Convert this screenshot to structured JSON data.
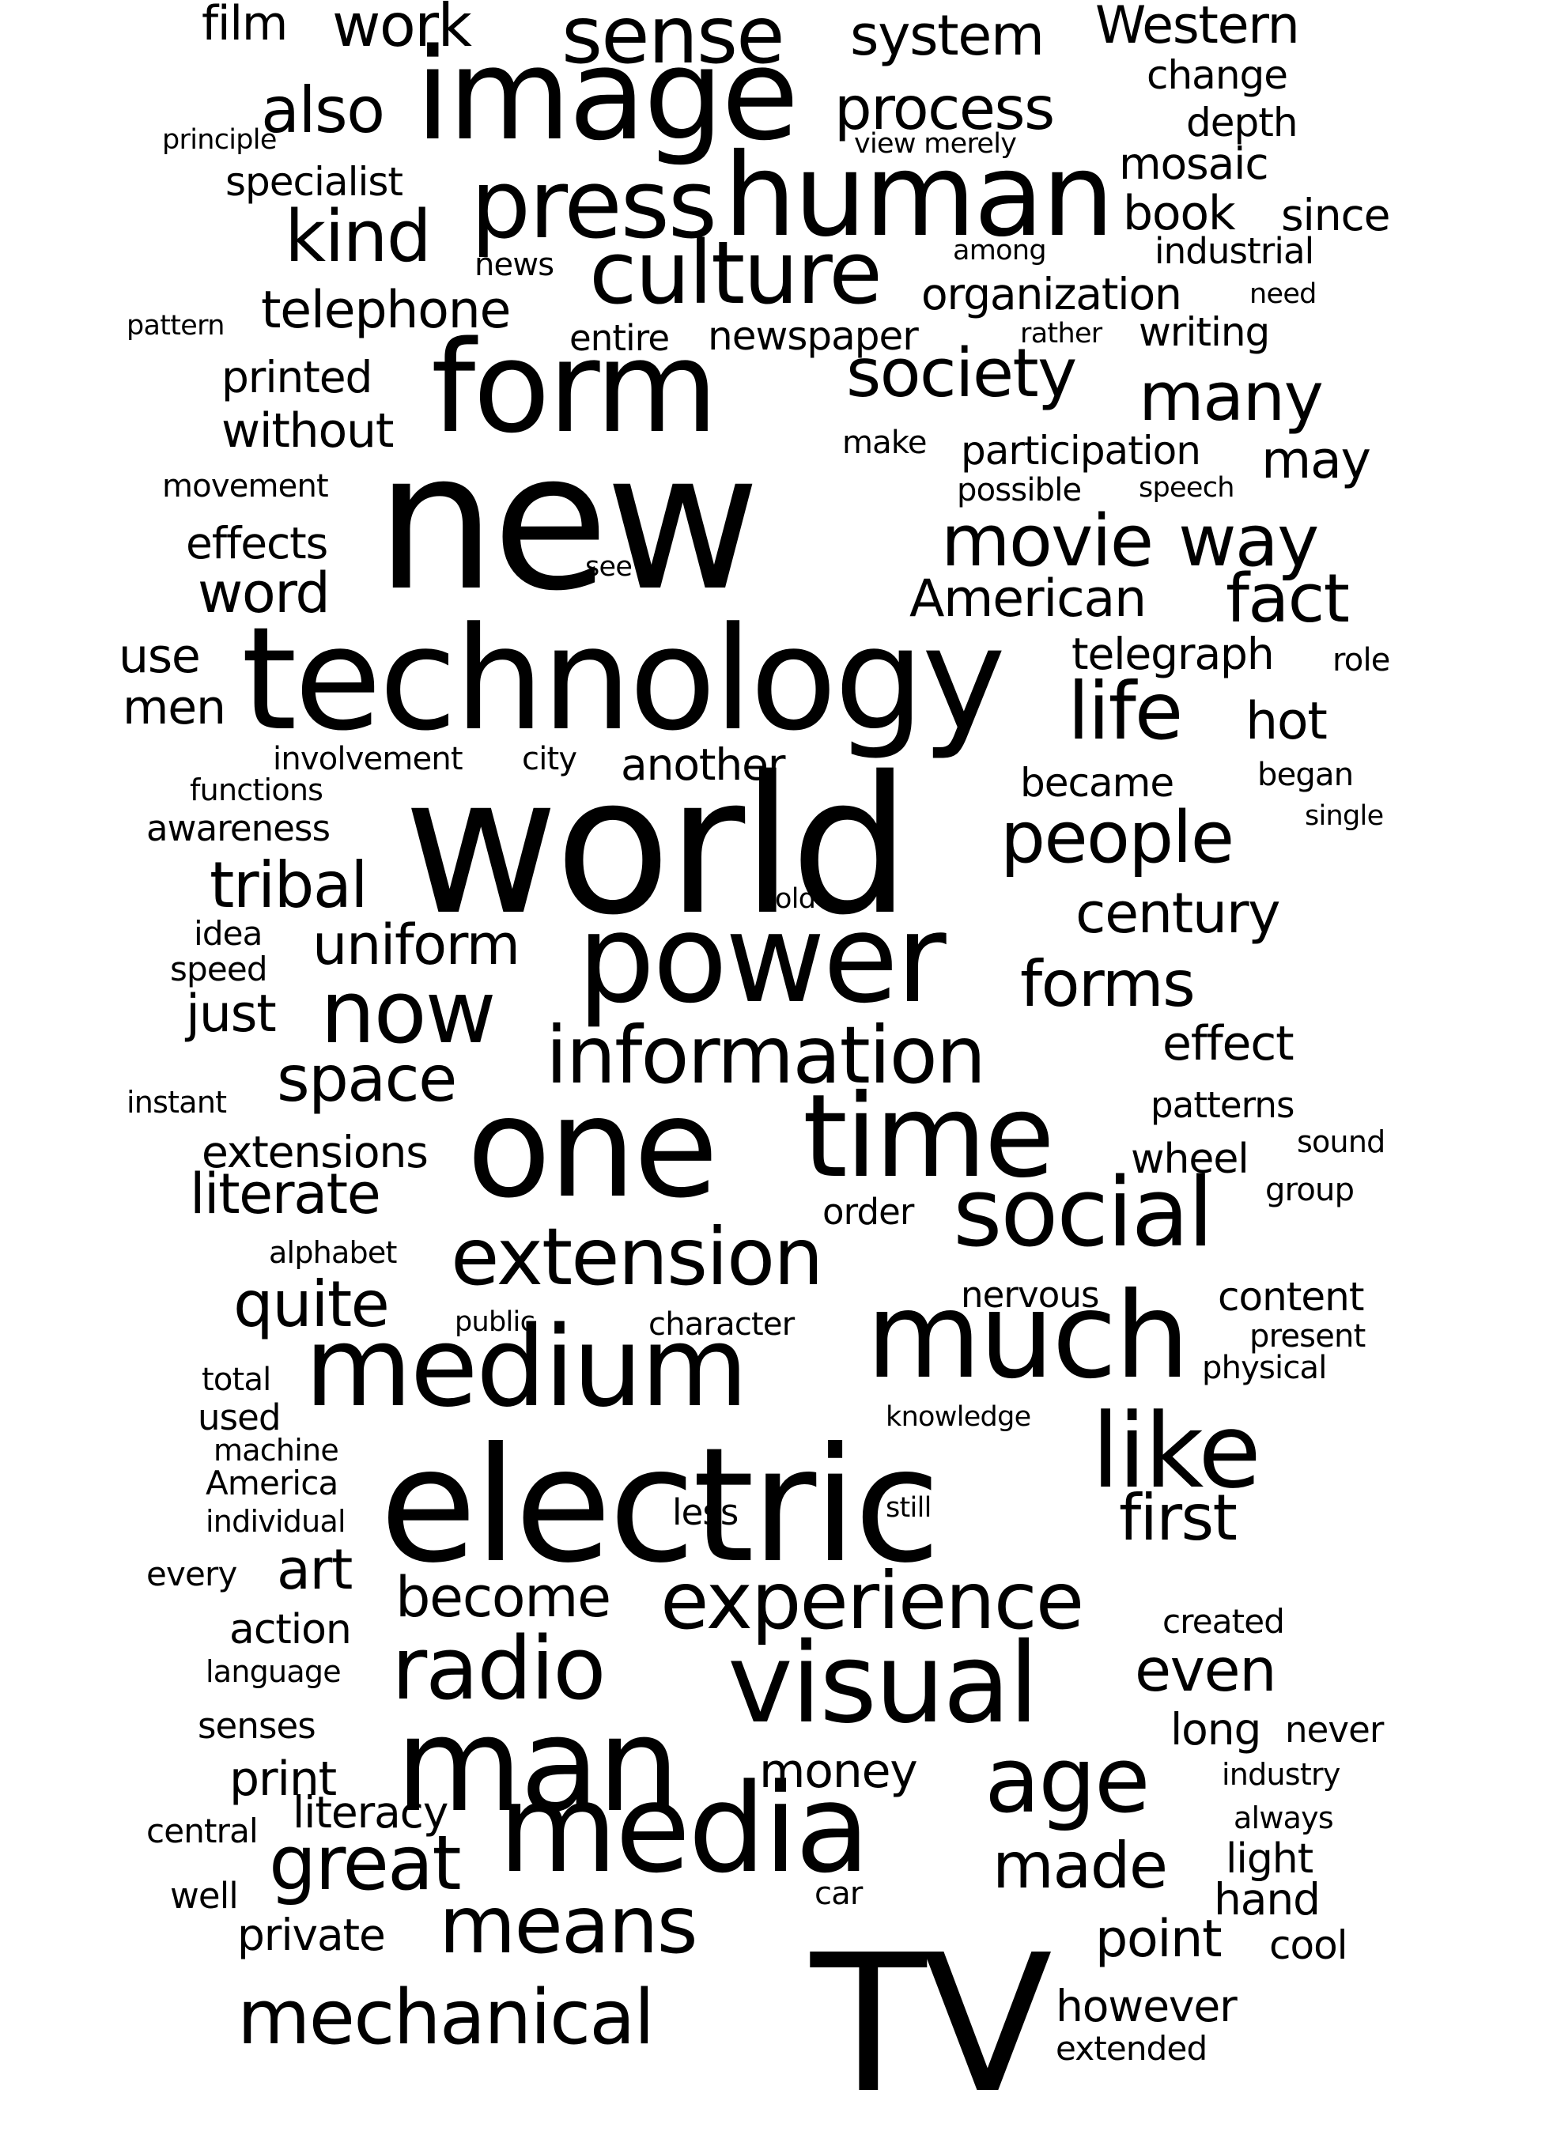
{
  "words": [
    "film",
    "work",
    "sense",
    "system",
    "Western",
    "also",
    "image",
    "process",
    "change",
    "principle",
    "depth",
    "specialist",
    "press",
    "human",
    "mosaic",
    "view merely",
    "book",
    "since",
    "kind",
    "news",
    "among",
    "industrial",
    "culture",
    "pattern",
    "telephone",
    "organization",
    "need",
    "entire",
    "newspaper",
    "rather",
    "writing",
    "printed",
    "form",
    "society",
    "many",
    "without",
    "make",
    "participation",
    "may",
    "movement",
    "possible",
    "speech",
    "new",
    "effects",
    "movie",
    "way",
    "see",
    "word",
    "American",
    "fact",
    "use",
    "technology",
    "telegraph",
    "role",
    "men",
    "life",
    "hot",
    "involvement",
    "city",
    "another",
    "functions",
    "became",
    "began",
    "awareness",
    "world",
    "people",
    "single",
    "tribal",
    "old",
    "century",
    "idea",
    "uniform",
    "power",
    "speed",
    "forms",
    "just",
    "now",
    "information",
    "effect",
    "space",
    "instant",
    "patterns",
    "extensions",
    "one",
    "time",
    "sound",
    "wheel",
    "literate",
    "group",
    "order",
    "alphabet",
    "social",
    "extension",
    "quite",
    "nervous",
    "content",
    "public",
    "character",
    "present",
    "medium",
    "much",
    "total",
    "physical",
    "used",
    "knowledge",
    "machine",
    "like",
    "America",
    "electric",
    "less",
    "still",
    "individual",
    "first",
    "every",
    "art",
    "become",
    "experience",
    "action",
    "created",
    "radio",
    "language",
    "visual",
    "even",
    "senses",
    "long",
    "never",
    "print",
    "man",
    "money",
    "age",
    "industry",
    "always",
    "literacy",
    "central",
    "media",
    "light",
    "great",
    "made",
    "hand",
    "well",
    "car",
    "private",
    "means",
    "point",
    "cool",
    "mechanical",
    "TV",
    "however",
    "extended"
  ]
}
